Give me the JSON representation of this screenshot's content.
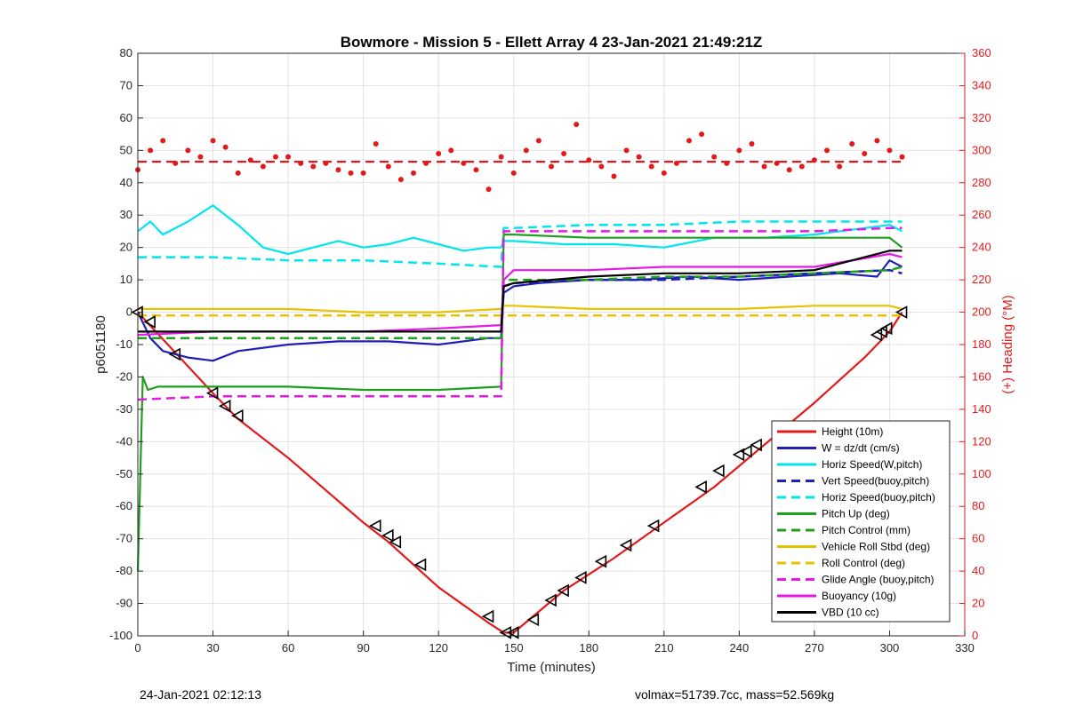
{
  "chart_data": {
    "type": "line",
    "title": "Bowmore - Mission 5 - Ellett Array 4 23-Jan-2021 21:49:21Z",
    "xlabel": "Time (minutes)",
    "ylabel_left": "p6051180",
    "ylabel_right": "(+) Heading (°M)",
    "xlim": [
      0,
      330
    ],
    "ylim_left": [
      -100,
      80
    ],
    "ylim_right": [
      0,
      360
    ],
    "xticks": [
      0,
      30,
      60,
      90,
      120,
      150,
      180,
      210,
      240,
      270,
      300,
      330
    ],
    "yticks_left": [
      -100,
      -90,
      -80,
      -70,
      -60,
      -50,
      -40,
      -30,
      -20,
      -10,
      0,
      10,
      20,
      30,
      40,
      50,
      60,
      70,
      80
    ],
    "yticks_right": [
      0,
      20,
      40,
      60,
      80,
      100,
      120,
      140,
      160,
      180,
      200,
      220,
      240,
      260,
      280,
      300,
      320,
      340,
      360
    ],
    "grid": true,
    "legend_position": "bottom-right",
    "series": [
      {
        "name": "Height (10m)",
        "color": "#e31a1c",
        "style": "solid",
        "x": [
          0,
          30,
          40,
          60,
          90,
          100,
          120,
          140,
          146,
          150,
          170,
          190,
          210,
          230,
          250,
          270,
          290,
          300,
          305
        ],
        "y": [
          0,
          -25,
          -33,
          -45,
          -65,
          -71,
          -85,
          -96,
          -99,
          -99,
          -86,
          -76,
          -65,
          -54,
          -41,
          -28,
          -14,
          -6,
          0
        ]
      },
      {
        "name": "W = dz/dt (cm/s)",
        "color": "#1f1fb4",
        "style": "solid",
        "x": [
          0,
          5,
          10,
          20,
          30,
          40,
          60,
          80,
          100,
          120,
          140,
          145,
          146,
          150,
          160,
          180,
          200,
          220,
          240,
          260,
          280,
          295,
          300,
          305
        ],
        "y": [
          0,
          -8,
          -12,
          -14,
          -15,
          -12,
          -10,
          -9,
          -9,
          -10,
          -8,
          -8,
          6,
          8,
          9,
          10,
          10,
          11,
          10,
          11,
          12,
          11,
          16,
          14
        ]
      },
      {
        "name": "Horiz Speed(W,pitch)",
        "color": "#00e5ee",
        "style": "solid",
        "x": [
          0,
          5,
          10,
          20,
          30,
          40,
          50,
          60,
          70,
          80,
          90,
          100,
          110,
          120,
          130,
          140,
          145,
          146,
          150,
          170,
          190,
          210,
          230,
          250,
          270,
          290,
          300,
          305
        ],
        "y": [
          25,
          28,
          24,
          28,
          33,
          27,
          20,
          18,
          20,
          22,
          20,
          21,
          23,
          21,
          19,
          20,
          20,
          22,
          22,
          21,
          21,
          20,
          23,
          23,
          24,
          26,
          27,
          25
        ]
      },
      {
        "name": "Vert Speed(buoy,pitch)",
        "color": "#1f1fb4",
        "style": "dashed",
        "x": [
          0,
          30,
          60,
          90,
          120,
          145,
          146,
          150,
          180,
          210,
          240,
          270,
          300,
          305
        ],
        "y": [
          -8,
          -8,
          -8,
          -8,
          -8,
          -8,
          8,
          9,
          10,
          10,
          11,
          12,
          13,
          12
        ]
      },
      {
        "name": "Horiz Speed(buoy,pitch)",
        "color": "#00e5ee",
        "style": "dashed",
        "x": [
          0,
          30,
          60,
          90,
          120,
          145,
          146,
          150,
          180,
          210,
          240,
          270,
          300,
          305
        ],
        "y": [
          17,
          17,
          16,
          16,
          15,
          14,
          26,
          26,
          27,
          27,
          28,
          28,
          28,
          28
        ]
      },
      {
        "name": "Pitch Up (deg)",
        "color": "#1ea01e",
        "style": "solid",
        "x": [
          0,
          2,
          4,
          8,
          30,
          60,
          90,
          120,
          145,
          146,
          150,
          180,
          210,
          240,
          270,
          300,
          305
        ],
        "y": [
          -80,
          -20,
          -24,
          -23,
          -23,
          -23,
          -24,
          -24,
          -23,
          24,
          24,
          23,
          23,
          23,
          23,
          23,
          20
        ]
      },
      {
        "name": "Pitch Control (mm)",
        "color": "#1ea01e",
        "style": "dashed",
        "x": [
          0,
          30,
          60,
          90,
          120,
          145,
          146,
          150,
          180,
          210,
          240,
          270,
          300,
          305
        ],
        "y": [
          -8,
          -8,
          -8,
          -8,
          -8,
          -8,
          10,
          10,
          10,
          11,
          11,
          12,
          13,
          14
        ]
      },
      {
        "name": "Vehicle Roll Stbd (deg)",
        "color": "#e6c200",
        "style": "solid",
        "x": [
          0,
          30,
          60,
          90,
          120,
          145,
          146,
          150,
          180,
          210,
          240,
          270,
          300,
          305
        ],
        "y": [
          1,
          1,
          1,
          0,
          0,
          1,
          2,
          2,
          1,
          1,
          1,
          2,
          2,
          1
        ]
      },
      {
        "name": "Roll Control (deg)",
        "color": "#e6c200",
        "style": "dashed",
        "x": [
          0,
          30,
          60,
          90,
          120,
          145,
          146,
          150,
          180,
          210,
          240,
          270,
          300,
          305
        ],
        "y": [
          -1,
          -1,
          -1,
          -1,
          -1,
          -1,
          -1,
          -1,
          -1,
          -1,
          -1,
          -1,
          -1,
          -1
        ]
      },
      {
        "name": "Glide Angle (buoy,pitch)",
        "color": "#e619e6",
        "style": "dashed",
        "x": [
          0,
          30,
          60,
          90,
          120,
          145,
          146,
          150,
          180,
          210,
          240,
          270,
          300,
          305
        ],
        "y": [
          -27,
          -26,
          -26,
          -26,
          -26,
          -26,
          25,
          25,
          25,
          25,
          25,
          25,
          26,
          26
        ]
      },
      {
        "name": "Buoyancy (10g)",
        "color": "#e619e6",
        "style": "solid",
        "x": [
          0,
          30,
          60,
          90,
          120,
          145,
          146,
          150,
          180,
          210,
          240,
          270,
          300,
          305
        ],
        "y": [
          -7,
          -6,
          -6,
          -6,
          -5,
          -4,
          10,
          13,
          13,
          14,
          14,
          14,
          18,
          17
        ]
      },
      {
        "name": "VBD (10 cc)",
        "color": "#000000",
        "style": "solid",
        "x": [
          0,
          30,
          60,
          90,
          120,
          145,
          146,
          150,
          180,
          210,
          240,
          270,
          300,
          305
        ],
        "y": [
          -6,
          -6,
          -6,
          -6,
          -6,
          -6,
          8,
          9,
          11,
          12,
          12,
          13,
          19,
          19
        ]
      }
    ],
    "heading": {
      "axis": "right",
      "color": "#e31a1c",
      "reference": 293,
      "x": [
        0,
        5,
        10,
        15,
        20,
        25,
        30,
        35,
        40,
        45,
        50,
        55,
        60,
        65,
        70,
        75,
        80,
        85,
        90,
        95,
        100,
        105,
        110,
        115,
        120,
        125,
        130,
        135,
        140,
        145,
        150,
        155,
        160,
        165,
        170,
        175,
        180,
        185,
        190,
        195,
        200,
        205,
        210,
        215,
        220,
        225,
        230,
        235,
        240,
        245,
        250,
        255,
        260,
        265,
        270,
        275,
        280,
        285,
        290,
        295,
        300,
        305
      ],
      "y": [
        288,
        300,
        306,
        292,
        300,
        296,
        306,
        302,
        286,
        294,
        290,
        296,
        296,
        292,
        290,
        292,
        288,
        286,
        286,
        304,
        290,
        282,
        286,
        292,
        298,
        300,
        292,
        288,
        276,
        296,
        286,
        300,
        306,
        290,
        298,
        316,
        294,
        290,
        284,
        300,
        296,
        290,
        286,
        292,
        306,
        310,
        296,
        292,
        300,
        304,
        290,
        292,
        288,
        290,
        294,
        300,
        290,
        304,
        298,
        306,
        300,
        296
      ]
    },
    "markers": {
      "shape": "triangle",
      "color": "#000000",
      "x": [
        0,
        5,
        15,
        30,
        35,
        40,
        95,
        100,
        103,
        113,
        140,
        147,
        150,
        158,
        165,
        170,
        177,
        185,
        195,
        206,
        225,
        232,
        240,
        243,
        247,
        295,
        297,
        299,
        305
      ],
      "y": [
        0,
        -3,
        -13,
        -25,
        -29,
        -32,
        -66,
        -69,
        -71,
        -78,
        -94,
        -99,
        -99,
        -95,
        -89,
        -86,
        -82,
        -77,
        -72,
        -66,
        -54,
        -49,
        -44,
        -43,
        -41,
        -7,
        -6,
        -5,
        0
      ]
    }
  },
  "footer": {
    "left": "24-Jan-2021 02:12:13",
    "right": "volmax=51739.7cc, mass=52.569kg"
  }
}
